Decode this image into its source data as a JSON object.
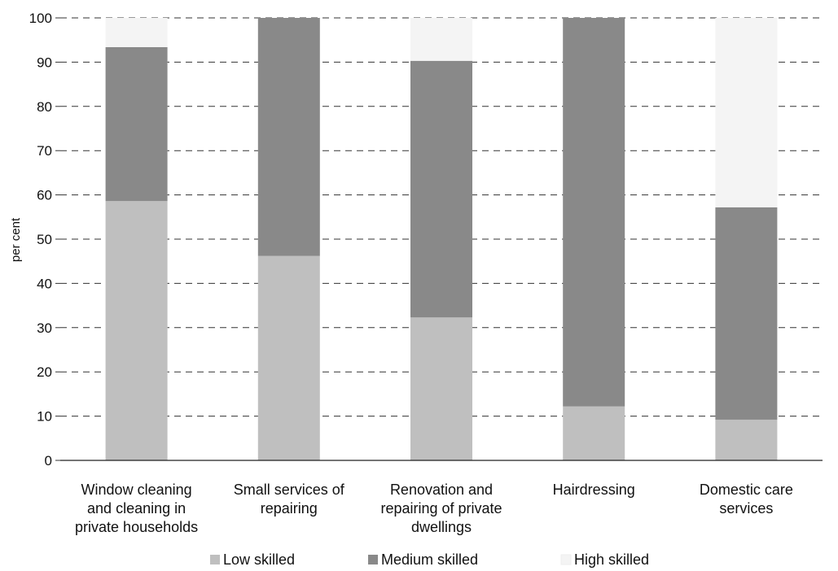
{
  "chart_data": {
    "type": "bar",
    "stacked": true,
    "categories": [
      [
        "Window cleaning",
        "and cleaning in",
        "private households"
      ],
      [
        "Small services of",
        "repairing"
      ],
      [
        "Renovation and",
        "repairing of private",
        "dwellings"
      ],
      [
        "Hairdressing"
      ],
      [
        "Domestic care",
        "services"
      ]
    ],
    "series": [
      {
        "name": "Low skilled",
        "values": [
          58.6,
          46.2,
          32.3,
          12.2,
          9.2
        ],
        "color": "#bfbfbf"
      },
      {
        "name": "Medium skilled",
        "values": [
          34.8,
          53.8,
          58.0,
          87.8,
          48.0
        ],
        "color": "#898989"
      },
      {
        "name": "High skilled",
        "values": [
          6.6,
          0,
          9.7,
          0,
          42.8
        ],
        "color": "#f4f4f4"
      }
    ],
    "ylabel": "per cent",
    "ylim": [
      0,
      100
    ],
    "yticks": [
      "0",
      "10",
      "20",
      "30",
      "40",
      "50",
      "60",
      "70",
      "80",
      "90",
      "100"
    ],
    "grid": true,
    "grid_style": "dashed",
    "legend_position": "bottom"
  }
}
